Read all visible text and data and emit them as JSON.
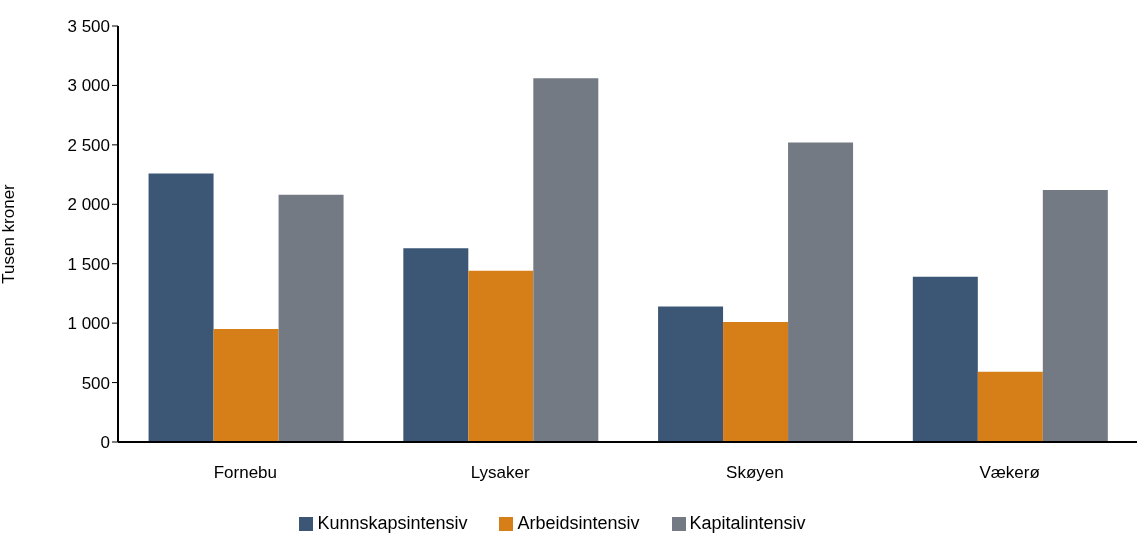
{
  "chart_data": {
    "type": "bar",
    "ylabel": "Tusen kroner",
    "categories": [
      "Fornebu",
      "Lysaker",
      "Skøyen",
      "Vækerø"
    ],
    "series": [
      {
        "name": "Kunnskapsintensiv",
        "color": "#3b5775",
        "values": [
          2260,
          1630,
          1140,
          1390
        ]
      },
      {
        "name": "Arbeidsintensiv",
        "color": "#d67e18",
        "values": [
          950,
          1440,
          1010,
          590
        ]
      },
      {
        "name": "Kapitalintensiv",
        "color": "#737a83",
        "values": [
          2080,
          3060,
          2520,
          2120
        ]
      }
    ],
    "ylim": [
      0,
      3500
    ],
    "yticks": [
      0,
      500,
      {
        "value": 1000,
        "label": "1 000"
      },
      {
        "value": 1500,
        "label": "1 500"
      },
      {
        "value": 2000,
        "label": "2 000"
      },
      {
        "value": 2500,
        "label": "2 500"
      },
      {
        "value": 3000,
        "label": "3 000"
      },
      {
        "value": 3500,
        "label": "3 500"
      }
    ],
    "grid": false,
    "legend": "bottom"
  }
}
